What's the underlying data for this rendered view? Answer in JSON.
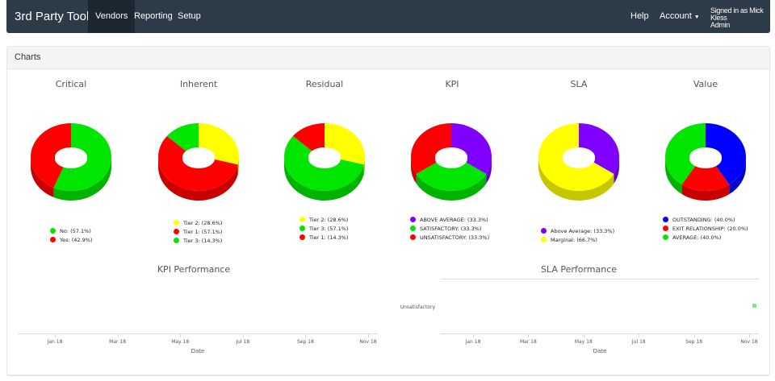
{
  "navbar": {
    "brand": "3rd Party Toolbox",
    "items": [
      "Vendors",
      "Reporting",
      "Setup"
    ],
    "help": "Help",
    "account": "Account",
    "signed_in_line1": "Signed in as Mick Kless",
    "signed_in_line2": "Admin"
  },
  "panel": {
    "title": "Charts"
  },
  "colors": {
    "navbar": "#2d3a47",
    "red": "#ff0000",
    "green": "#00e600",
    "yellow": "#ffff00",
    "purple": "#8000ff",
    "blue": "#0000ff"
  },
  "chart_data": [
    {
      "type": "pie",
      "title": "Critical",
      "slices": [
        {
          "label": "No: (57.1%)",
          "value": 57.1,
          "color": "#00e600"
        },
        {
          "label": "Yes: (42.9%)",
          "value": 42.9,
          "color": "#ff0000"
        }
      ]
    },
    {
      "type": "pie",
      "title": "Inherent",
      "slices": [
        {
          "label": "Tier 2: (28.6%)",
          "value": 28.6,
          "color": "#ffff00"
        },
        {
          "label": "Tier 1: (57.1%)",
          "value": 57.1,
          "color": "#ff0000"
        },
        {
          "label": "Tier 3: (14.3%)",
          "value": 14.3,
          "color": "#00e600"
        }
      ]
    },
    {
      "type": "pie",
      "title": "Residual",
      "slices": [
        {
          "label": "Tier 2: (28.6%)",
          "value": 28.6,
          "color": "#ffff00"
        },
        {
          "label": "Tier 3: (57.1%)",
          "value": 57.1,
          "color": "#00e600"
        },
        {
          "label": "Tier 1: (14.3%)",
          "value": 14.3,
          "color": "#ff0000"
        }
      ]
    },
    {
      "type": "pie",
      "title": "KPI",
      "slices": [
        {
          "label": "ABOVE AVERAGE: (33.3%)",
          "value": 33.3,
          "color": "#8000ff"
        },
        {
          "label": "SATISFACTORY: (33.3%)",
          "value": 33.3,
          "color": "#00e600"
        },
        {
          "label": "UNSATISFACTORY: (33.3%)",
          "value": 33.3,
          "color": "#ff0000"
        }
      ]
    },
    {
      "type": "pie",
      "title": "SLA",
      "slices": [
        {
          "label": "Above Average: (33.3%)",
          "value": 33.3,
          "color": "#8000ff"
        },
        {
          "label": "Marginal: (66.7%)",
          "value": 66.7,
          "color": "#ffff00"
        }
      ]
    },
    {
      "type": "pie",
      "title": "Value",
      "slices": [
        {
          "label": "OUTSTANDING: (40.0%)",
          "value": 40.0,
          "color": "#0000ff"
        },
        {
          "label": "EXIT RELATIONSHIP: (20.0%)",
          "value": 20.0,
          "color": "#ff0000"
        },
        {
          "label": "AVERAGE: (40.0%)",
          "value": 40.0,
          "color": "#00e600"
        }
      ]
    },
    {
      "type": "line",
      "title": "KPI Performance",
      "xlabel": "Date",
      "x_ticks": [
        "Jan 18",
        "Mar 18",
        "May 18",
        "Jul 18",
        "Sep 18",
        "Nov 18"
      ],
      "series": []
    },
    {
      "type": "scatter",
      "title": "SLA Performance",
      "xlabel": "Date",
      "x_ticks": [
        "Jan 18",
        "Mar 18",
        "May 18",
        "Jul 18",
        "Sep 18",
        "Nov 18"
      ],
      "y_categories": [
        "Unsatisfactory"
      ],
      "points": [
        {
          "x": "Nov 18",
          "y": "Unsatisfactory"
        }
      ]
    }
  ]
}
